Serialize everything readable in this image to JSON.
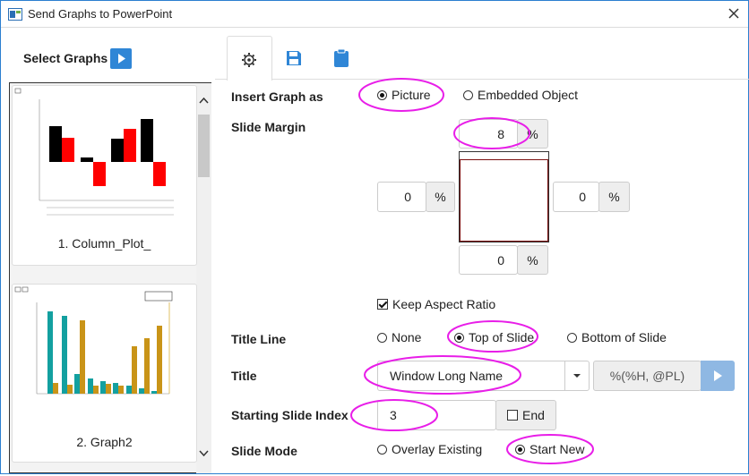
{
  "window": {
    "title": "Send Graphs to PowerPoint"
  },
  "sidebar": {
    "label": "Select Graphs",
    "graphs": [
      {
        "name": "1. Column_Plot_"
      },
      {
        "name": "2. Graph2"
      }
    ]
  },
  "form": {
    "insert_graph_as": {
      "label": "Insert Graph as",
      "options": [
        "Picture",
        "Embedded Object"
      ],
      "selected": 0
    },
    "slide_margin": {
      "label": "Slide Margin",
      "top": 8,
      "left": 0,
      "right": 0,
      "bottom": 0,
      "unit": "%"
    },
    "keep_aspect_ratio": {
      "label": "Keep Aspect Ratio",
      "checked": true
    },
    "title_line": {
      "label": "Title Line",
      "options": [
        "None",
        "Top of Slide",
        "Bottom of Slide"
      ],
      "selected": 1
    },
    "title": {
      "label": "Title",
      "value": "Window Long Name",
      "format": "%(%H, @PL)"
    },
    "starting_slide_index": {
      "label": "Starting Slide Index",
      "value": 3,
      "end": "End",
      "end_checked": false
    },
    "slide_mode": {
      "label": "Slide Mode",
      "options": [
        "Overlay Existing",
        "Start New"
      ],
      "selected": 1
    }
  }
}
